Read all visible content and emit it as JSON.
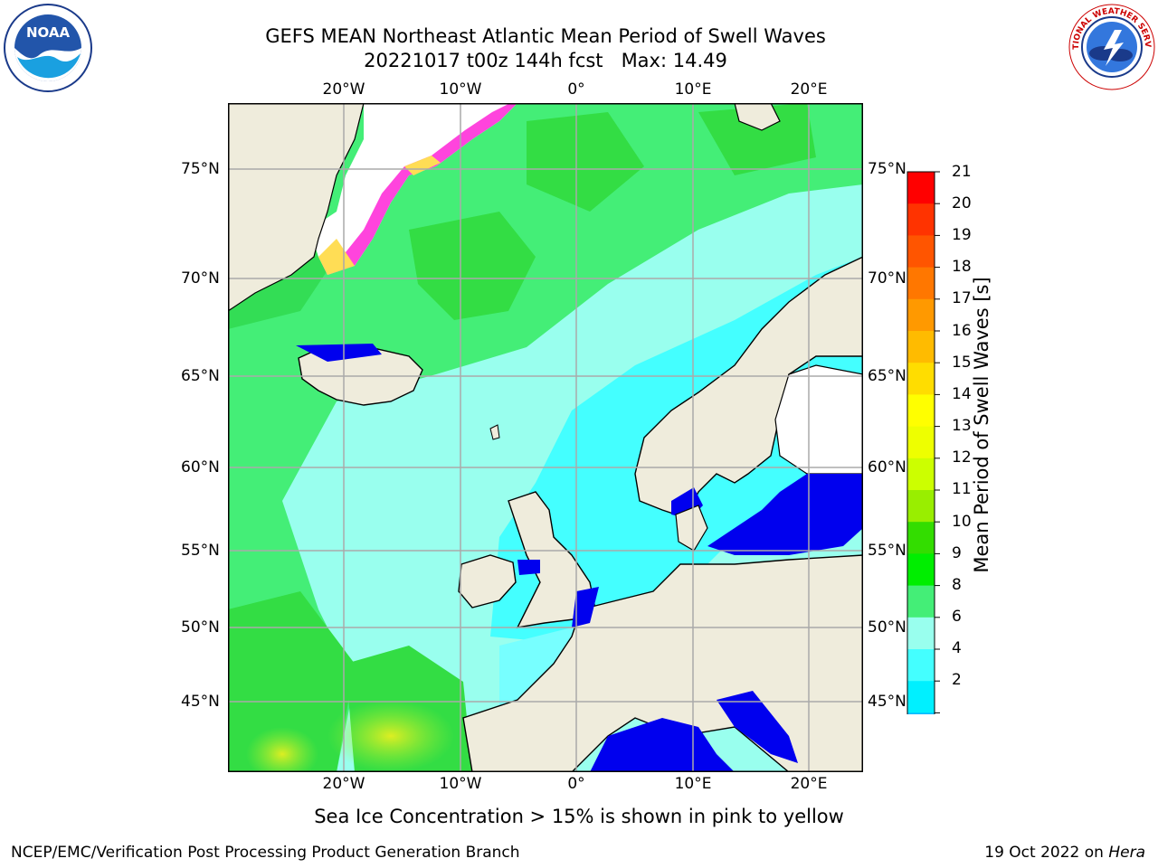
{
  "title_line1": "GEFS MEAN Northeast Atlantic Mean Period of Swell Waves",
  "title_line2": "20221017 t00z 144h fcst   Max: 14.49",
  "lat_labels": [
    "75°N",
    "70°N",
    "65°N",
    "60°N",
    "55°N",
    "50°N",
    "45°N"
  ],
  "lon_labels": [
    "20°W",
    "10°W",
    "0°",
    "10°E",
    "20°E"
  ],
  "colorbar": {
    "label": "Mean Period of Swell Waves [s]",
    "ticks": [
      "21",
      "20",
      "19",
      "18",
      "17",
      "16",
      "15",
      "14",
      "13",
      "12",
      "11",
      "10",
      "9",
      "8",
      "6",
      "4",
      "2"
    ],
    "colors": [
      "#ff0000",
      "#ff3300",
      "#ff5500",
      "#ff7700",
      "#ff9900",
      "#ffbb00",
      "#ffdd00",
      "#ffff00",
      "#eeff00",
      "#ccff00",
      "#99ee00",
      "#33dd00",
      "#00ee00",
      "#44ee77",
      "#99ffee",
      "#44ffff",
      "#00f0ff",
      "#00b8ff",
      "#0070ff",
      "#0000ee"
    ]
  },
  "note": "Sea Ice Concentration > 15% is shown in pink to yellow",
  "footer_left": "NCEP/EMC/Verification Post Processing Product Generation Branch",
  "footer_right_date": "19 Oct 2022 on ",
  "footer_right_machine": "Hera",
  "logos": {
    "noaa_text": "NOAA",
    "nws_text": "NATIONAL WEATHER SERVICE"
  },
  "colors": {
    "land": "#efecdc",
    "ice_pink": "#ff44dd",
    "ice_yellow": "#ffdd55",
    "grid": "#aaaaaa"
  }
}
